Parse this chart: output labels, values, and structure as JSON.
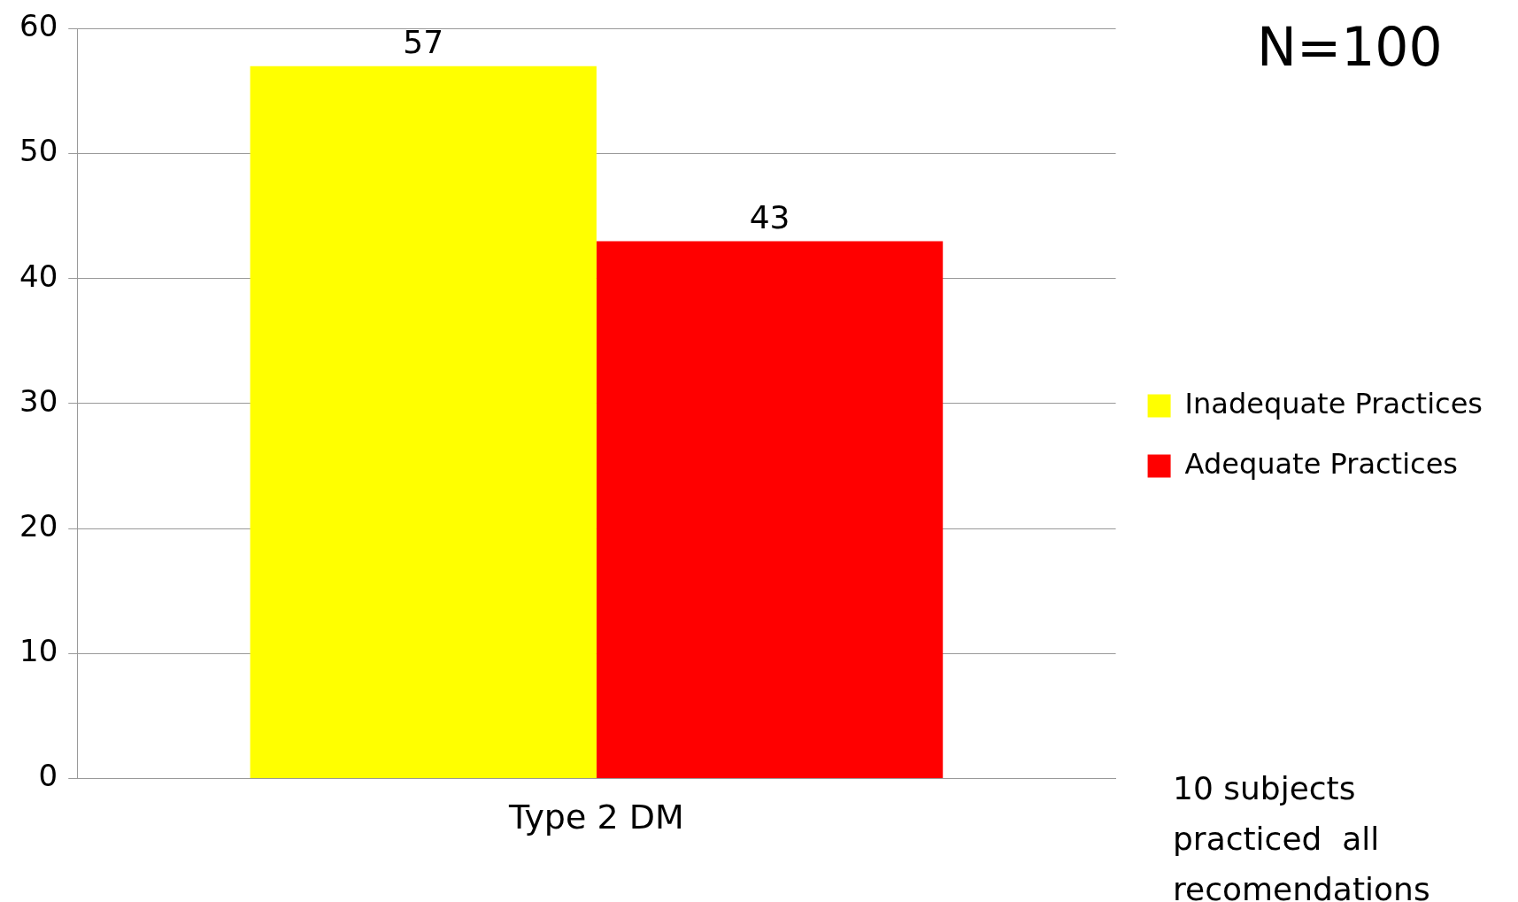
{
  "chart_data": {
    "type": "bar",
    "categories": [
      "Type 2 DM"
    ],
    "series": [
      {
        "name": "Inadequate Practices",
        "color": "#ffff00",
        "values": [
          57
        ]
      },
      {
        "name": "Adequate Practices",
        "color": "#ff0000",
        "values": [
          43
        ]
      }
    ],
    "ylim": [
      0,
      60
    ],
    "yticks": [
      0,
      10,
      20,
      30,
      40,
      50,
      60
    ],
    "grid": "y",
    "legend": "right",
    "data_labels": true,
    "annotations": [
      "N=100",
      "10 subjects practiced  all recomendations"
    ]
  }
}
